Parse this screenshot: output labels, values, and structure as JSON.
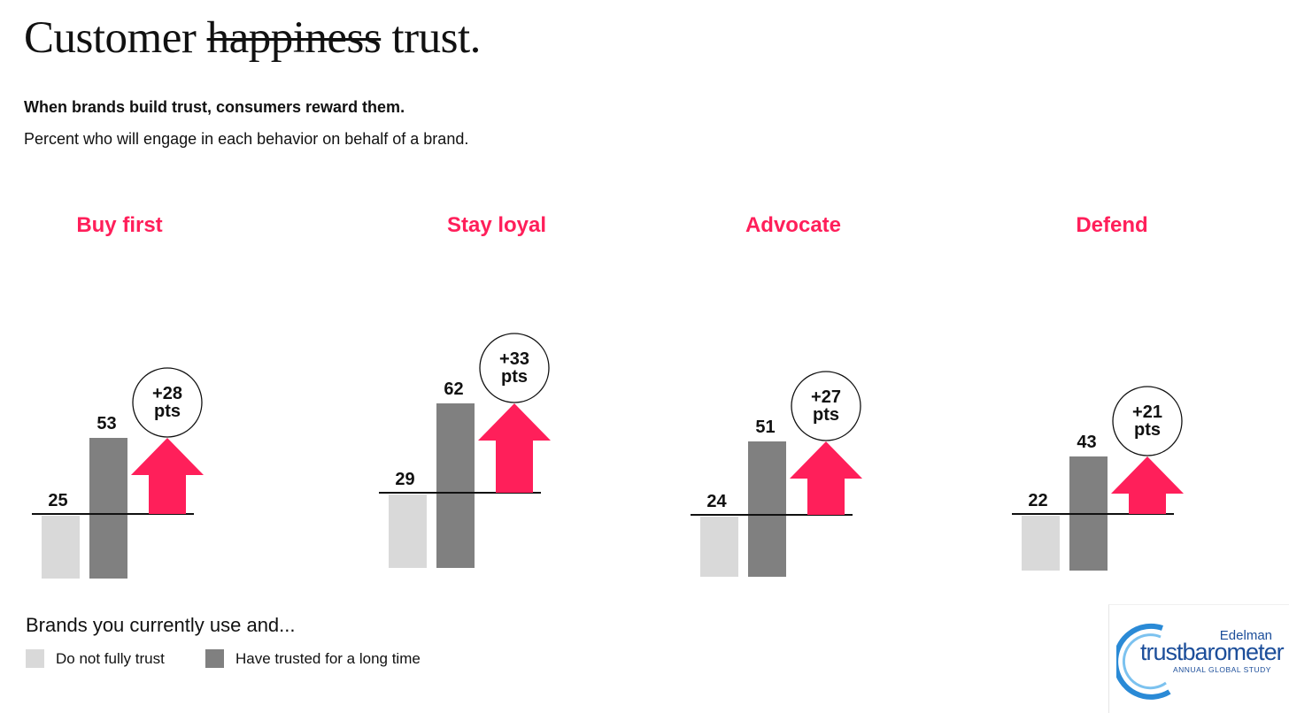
{
  "title": {
    "struck": "happiness",
    "before": "Customer ",
    "after": " trust."
  },
  "subtitle": "When brands build trust, consumers reward them.",
  "description": "Percent who will engage in each behavior on behalf of a brand.",
  "colors": {
    "accent": "#ff1f5a",
    "not_trust": "#d9d9d9",
    "trusted": "#808080",
    "text": "#111111"
  },
  "legend": {
    "title": "Brands you currently use and...",
    "items": [
      {
        "label": "Do not fully trust",
        "color": "#d9d9d9"
      },
      {
        "label": "Have trusted for a long time",
        "color": "#808080"
      }
    ]
  },
  "logo": {
    "top": "Edelman",
    "main_a": "trust",
    "main_b": "barometer",
    "sub": "ANNUAL GLOBAL STUDY"
  },
  "chart_data": {
    "type": "bar",
    "unit": "percent",
    "series": [
      {
        "name": "Do not fully trust",
        "values": [
          25,
          29,
          24,
          22
        ]
      },
      {
        "name": "Have trusted for a long time",
        "values": [
          53,
          62,
          51,
          43
        ]
      }
    ],
    "categories": [
      "Buy first",
      "Stay loyal",
      "Advocate",
      "Defend"
    ],
    "differences": [
      {
        "value": "+28",
        "unit": "pts"
      },
      {
        "value": "+33",
        "unit": "pts"
      },
      {
        "value": "+27",
        "unit": "pts"
      },
      {
        "value": "+21",
        "unit": "pts"
      }
    ],
    "legend_position": "bottom-left",
    "grid": false
  }
}
